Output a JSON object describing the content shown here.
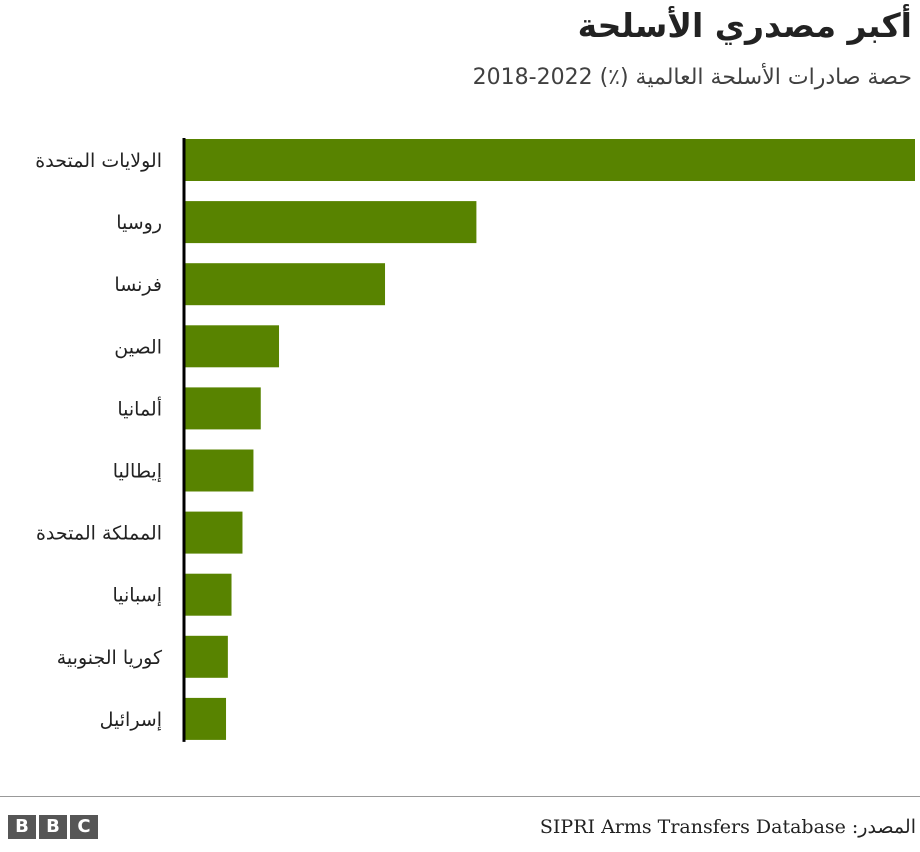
{
  "header": {
    "title": "أكبر مصدري الأسلحة",
    "subtitle": "حصة صادرات الأسلحة العالمية (٪) 2022-2018"
  },
  "chart_data": {
    "type": "bar",
    "orientation": "horizontal",
    "categories": [
      "الولايات المتحدة",
      "روسيا",
      "فرنسا",
      "الصين",
      "ألمانيا",
      "إيطاليا",
      "المملكة المتحدة",
      "إسبانيا",
      "كوريا الجنوبية",
      "إسرائيل"
    ],
    "values": [
      40,
      16,
      11,
      5.2,
      4.2,
      3.8,
      3.2,
      2.6,
      2.4,
      2.3
    ],
    "xlim": [
      0,
      40
    ],
    "bar_color": "#588300",
    "axis_color": "#000000",
    "grid": false,
    "legend": false
  },
  "footer": {
    "source_label": "المصدر:",
    "source_text": "SIPRI Arms Transfers Database",
    "logo_letters": [
      "B",
      "B",
      "C"
    ],
    "logo_color": "#565656"
  }
}
